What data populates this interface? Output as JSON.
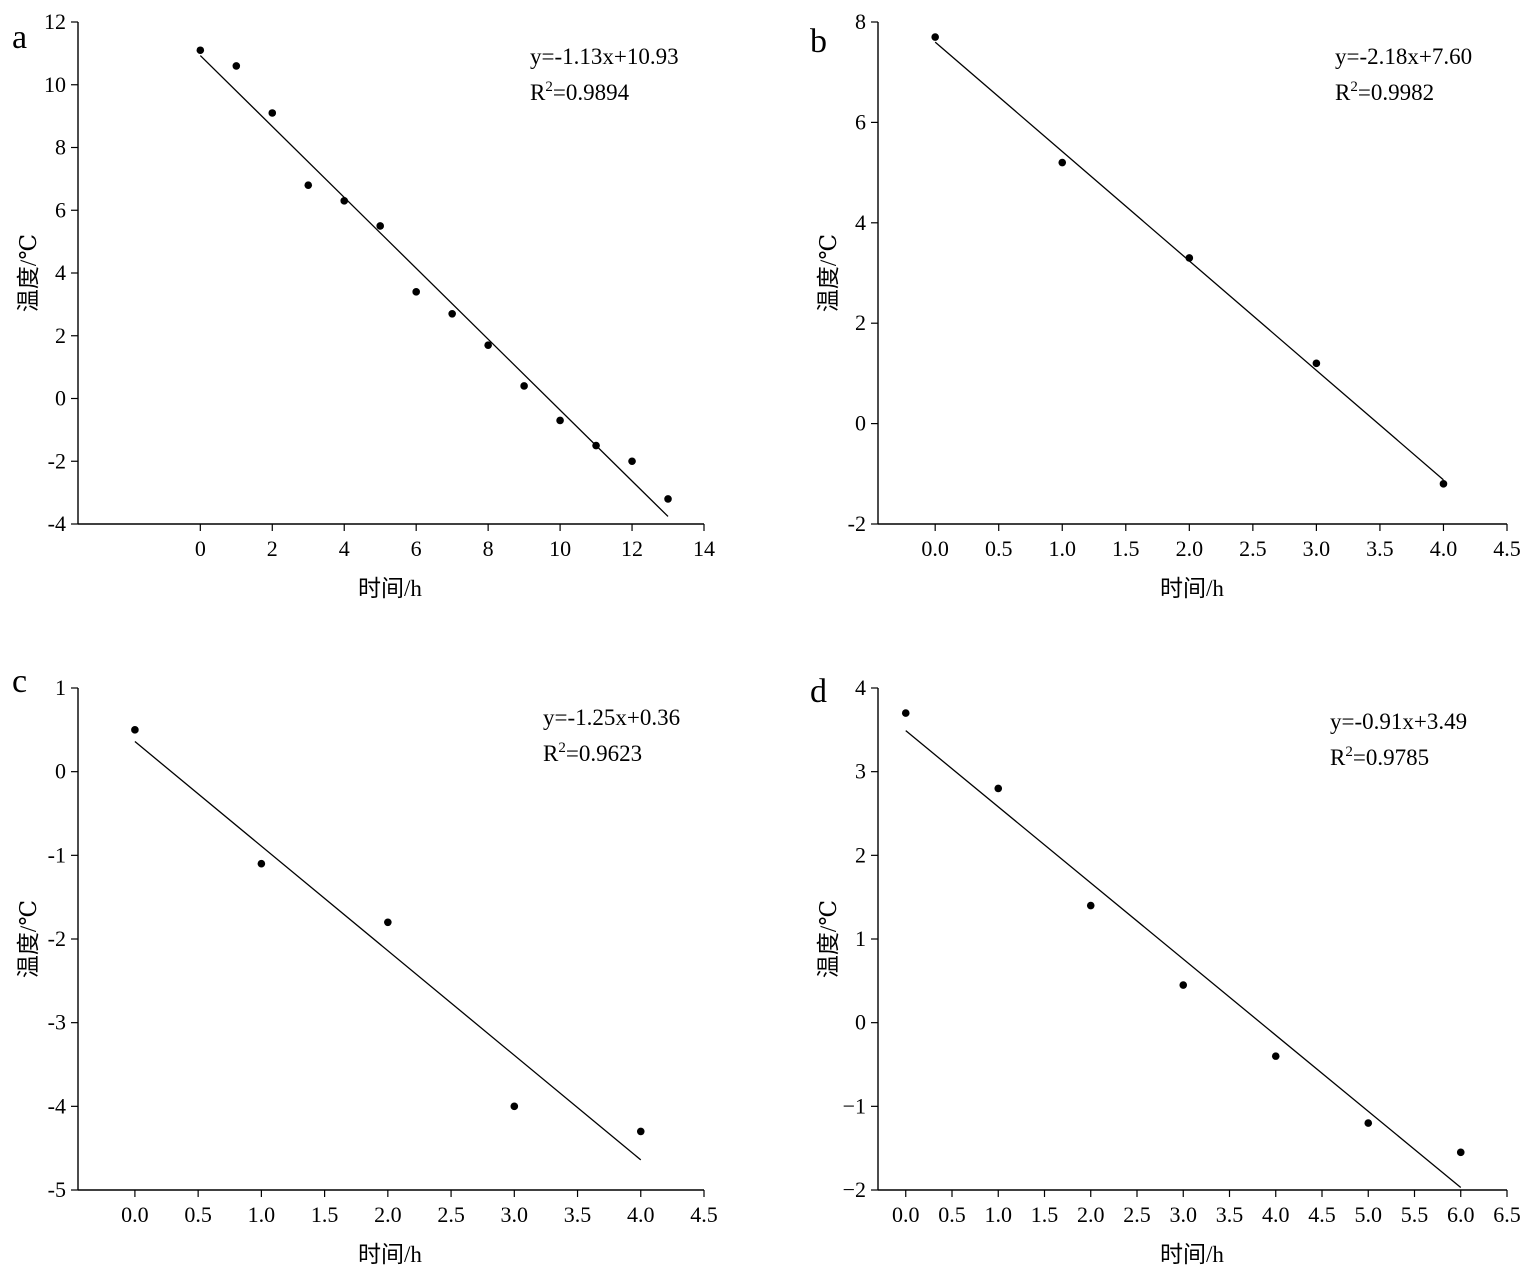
{
  "chart_data": [
    {
      "type": "scatter",
      "panel_label": "a",
      "xlabel": "时间/h",
      "ylabel": "温度/℃",
      "xlim": [
        -3.4,
        14
      ],
      "ylim": [
        -4,
        12
      ],
      "xticks": [
        0,
        2,
        4,
        6,
        8,
        10,
        12,
        14
      ],
      "xtick_labels": [
        "0",
        "2",
        "4",
        "6",
        "8",
        "10",
        "12",
        "14"
      ],
      "yticks": [
        -4,
        -2,
        0,
        2,
        4,
        6,
        8,
        10,
        12
      ],
      "ytick_labels": [
        "-4",
        "-2",
        "0",
        "2",
        "4",
        "6",
        "8",
        "10",
        "12"
      ],
      "x": [
        0,
        1,
        2,
        3,
        4,
        5,
        6,
        7,
        8,
        9,
        10,
        11,
        12,
        13
      ],
      "y": [
        11.1,
        10.6,
        9.1,
        6.8,
        6.3,
        5.5,
        3.4,
        2.7,
        1.7,
        0.4,
        -0.7,
        -1.5,
        -2.0,
        -3.2
      ],
      "fit": {
        "slope": -1.13,
        "intercept": 10.93,
        "x_range": [
          0,
          13
        ]
      },
      "equation": "y=-1.13x+10.93",
      "r2_prefix": "R",
      "r2_sup": "2",
      "r2_value": "=0.9894",
      "grid": false
    },
    {
      "type": "scatter",
      "panel_label": "b",
      "xlabel": "时间/h",
      "ylabel": "温度/℃",
      "xlim": [
        -0.45,
        4.5
      ],
      "ylim": [
        -2,
        8
      ],
      "xticks": [
        0,
        0.5,
        1,
        1.5,
        2,
        2.5,
        3,
        3.5,
        4,
        4.5
      ],
      "xtick_labels": [
        "0.0",
        "0.5",
        "1.0",
        "1.5",
        "2.0",
        "2.5",
        "3.0",
        "3.5",
        "4.0",
        "4.5"
      ],
      "yticks": [
        -2,
        0,
        2,
        4,
        6,
        8
      ],
      "ytick_labels": [
        "-2",
        "0",
        "2",
        "4",
        "6",
        "8"
      ],
      "x": [
        0,
        1,
        2,
        3,
        4
      ],
      "y": [
        7.7,
        5.2,
        3.3,
        1.2,
        -1.2
      ],
      "fit": {
        "slope": -2.18,
        "intercept": 7.6,
        "x_range": [
          0,
          4
        ]
      },
      "equation": "y=-2.18x+7.60",
      "r2_prefix": "R",
      "r2_sup": "2",
      "r2_value": "=0.9982",
      "grid": false
    },
    {
      "type": "scatter",
      "panel_label": "c",
      "xlabel": "时间/h",
      "ylabel": "温度/℃",
      "xlim": [
        -0.45,
        4.5
      ],
      "ylim": [
        -5,
        1
      ],
      "xticks": [
        0,
        0.5,
        1,
        1.5,
        2,
        2.5,
        3,
        3.5,
        4,
        4.5
      ],
      "xtick_labels": [
        "0.0",
        "0.5",
        "1.0",
        "1.5",
        "2.0",
        "2.5",
        "3.0",
        "3.5",
        "4.0",
        "4.5"
      ],
      "yticks": [
        -5,
        -4,
        -3,
        -2,
        -1,
        0,
        1
      ],
      "ytick_labels": [
        "-5",
        "-4",
        "-3",
        "-2",
        "-1",
        "0",
        "1"
      ],
      "x": [
        0,
        1,
        2,
        3,
        4
      ],
      "y": [
        0.5,
        -1.1,
        -1.8,
        -4.0,
        -4.3
      ],
      "fit": {
        "slope": -1.25,
        "intercept": 0.36,
        "x_range": [
          0,
          4
        ]
      },
      "equation": "y=-1.25x+0.36",
      "r2_prefix": "R",
      "r2_sup": "2",
      "r2_value": "=0.9623",
      "grid": false
    },
    {
      "type": "scatter",
      "panel_label": "d",
      "xlabel": "时间/h",
      "ylabel": "温度/℃",
      "xlim": [
        -0.3,
        6.5
      ],
      "ylim": [
        -2,
        4
      ],
      "xticks": [
        0,
        0.5,
        1,
        1.5,
        2,
        2.5,
        3,
        3.5,
        4,
        4.5,
        5,
        5.5,
        6,
        6.5
      ],
      "xtick_labels": [
        "0.0",
        "0.5",
        "1.0",
        "1.5",
        "2.0",
        "2.5",
        "3.0",
        "3.5",
        "4.0",
        "4.5",
        "5.0",
        "5.5",
        "6.0",
        "6.5"
      ],
      "yticks": [
        -2,
        -1,
        0,
        1,
        2,
        3,
        4
      ],
      "ytick_labels": [
        "−2",
        "−1",
        "0",
        "1",
        "2",
        "3",
        "4"
      ],
      "x": [
        0,
        1,
        2,
        3,
        4,
        5,
        6
      ],
      "y": [
        3.7,
        2.8,
        1.4,
        0.45,
        -0.4,
        -1.2,
        -1.55
      ],
      "fit": {
        "slope": -0.91,
        "intercept": 3.49,
        "x_range": [
          0,
          6
        ]
      },
      "equation": "y=-0.91x+3.49",
      "r2_prefix": "R",
      "r2_sup": "2",
      "r2_value": "=0.9785",
      "grid": false
    }
  ]
}
